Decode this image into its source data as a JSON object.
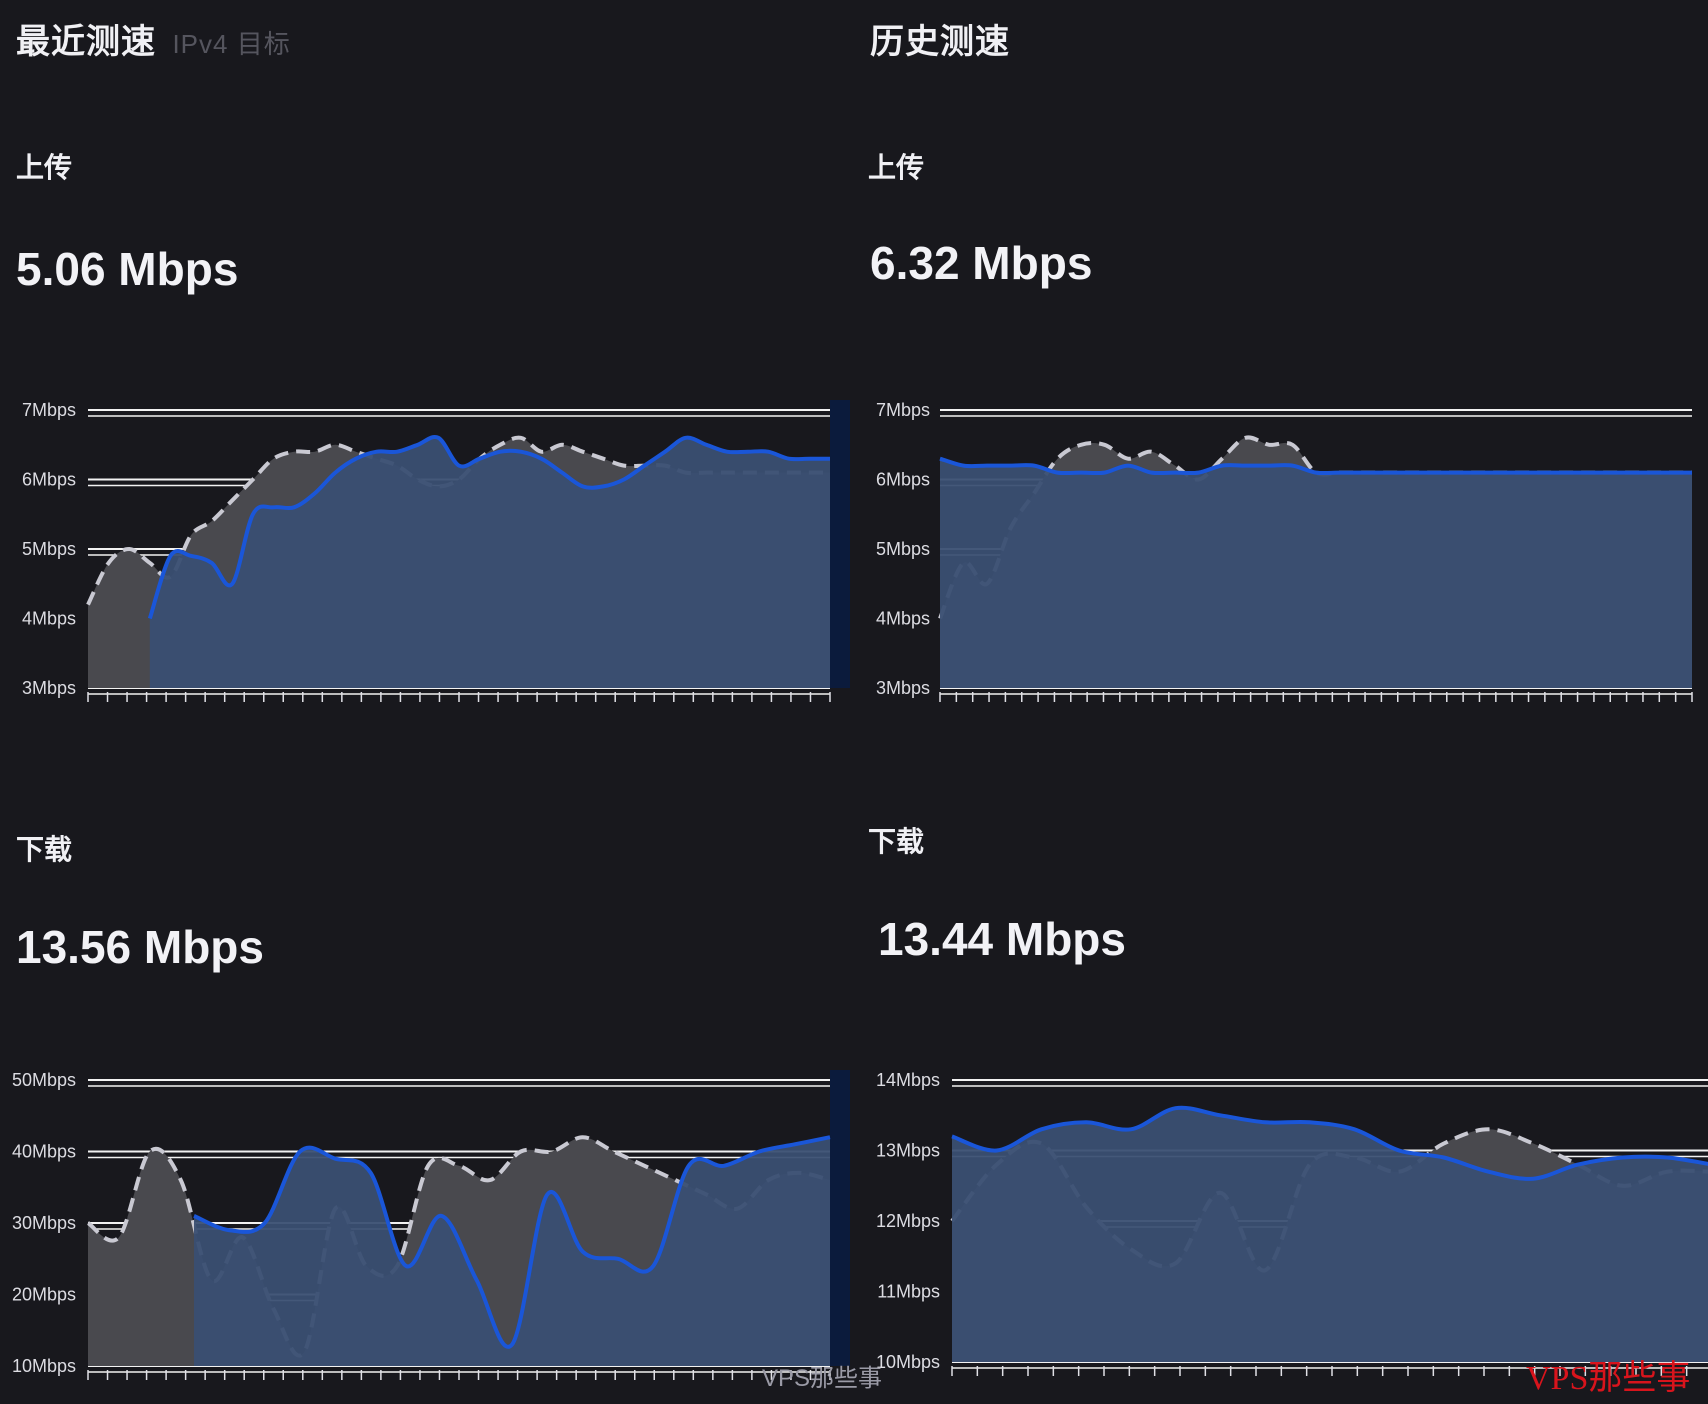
{
  "sections": [
    {
      "title": "最近测速",
      "title_extra": "IPv4 目标"
    },
    {
      "title": "历史测速",
      "title_extra": ""
    }
  ],
  "charts": [
    {
      "label": "上传",
      "value": "5.06 Mbps"
    },
    {
      "label": "上传",
      "value": "6.32 Mbps"
    },
    {
      "label": "下载",
      "value": "13.56 Mbps"
    },
    {
      "label": "下载",
      "value": "13.44 Mbps"
    }
  ],
  "watermark": "VPS那些事",
  "watermark2": "VPS那些事",
  "colors": {
    "background": "#18181d",
    "area_gray": "#49494e",
    "area_blue": "#3a4f72",
    "line_blue": "#1a56d8",
    "dark_navy": "#0b1b3c"
  },
  "chart_data": [
    {
      "type": "area",
      "ylim": [
        3,
        7
      ],
      "tick_labels": [
        "3Mbps",
        "4Mbps",
        "5Mbps",
        "6Mbps",
        "7Mbps"
      ],
      "tick_values": [
        3,
        4,
        5,
        6,
        7
      ],
      "series": [
        {
          "values": [
            4.2,
            4.8,
            5.0,
            4.8,
            4.6,
            5.2,
            5.4,
            5.7,
            6.0,
            6.3,
            6.4,
            6.4,
            6.5,
            6.4,
            6.3,
            6.2,
            6.0,
            5.9,
            6.0,
            6.3,
            6.5,
            6.6,
            6.4,
            6.5,
            6.4,
            6.3,
            6.2,
            6.2,
            6.2,
            6.1,
            6.1,
            6.1,
            6.1,
            6.1,
            6.1,
            6.1,
            6.1
          ]
        },
        {
          "values": [
            null,
            null,
            null,
            4.0,
            4.9,
            4.9,
            4.8,
            4.5,
            5.5,
            5.6,
            5.6,
            5.8,
            6.1,
            6.3,
            6.4,
            6.4,
            6.5,
            6.6,
            6.2,
            6.3,
            6.4,
            6.4,
            6.3,
            6.1,
            5.9,
            5.9,
            6.0,
            6.2,
            6.4,
            6.6,
            6.5,
            6.4,
            6.4,
            6.4,
            6.3,
            6.3,
            6.3
          ]
        }
      ]
    },
    {
      "type": "area",
      "ylim": [
        3,
        7
      ],
      "tick_labels": [
        "3Mbps",
        "4Mbps",
        "5Mbps",
        "6Mbps",
        "7Mbps"
      ],
      "tick_values": [
        3,
        4,
        5,
        6,
        7
      ],
      "series": [
        {
          "values": [
            4.0,
            4.8,
            4.5,
            5.3,
            5.8,
            6.3,
            6.5,
            6.5,
            6.3,
            6.4,
            6.2,
            6.0,
            6.3,
            6.6,
            6.5,
            6.5,
            6.1,
            6.1,
            6.1,
            6.1,
            6.1,
            6.1,
            6.1,
            6.1,
            6.1,
            6.1,
            6.1,
            6.1,
            6.1,
            6.1,
            6.1,
            6.1,
            6.1
          ]
        },
        {
          "values": [
            6.3,
            6.2,
            6.2,
            6.2,
            6.2,
            6.1,
            6.1,
            6.1,
            6.2,
            6.1,
            6.1,
            6.1,
            6.2,
            6.2,
            6.2,
            6.2,
            6.1,
            6.1,
            6.1,
            6.1,
            6.1,
            6.1,
            6.1,
            6.1,
            6.1,
            6.1,
            6.1,
            6.1,
            6.1,
            6.1,
            6.1,
            6.1,
            6.1
          ]
        }
      ]
    },
    {
      "type": "area",
      "ylim": [
        10,
        50
      ],
      "tick_labels": [
        "10Mbps",
        "20Mbps",
        "30Mbps",
        "40Mbps",
        "50Mbps"
      ],
      "tick_values": [
        10,
        20,
        30,
        40,
        50
      ],
      "series": [
        {
          "values": [
            30,
            28,
            40,
            36,
            22,
            28,
            18,
            12,
            32,
            24,
            24,
            38,
            38,
            36,
            40,
            40,
            42,
            40,
            38,
            36,
            34,
            32,
            36,
            37,
            36
          ]
        },
        {
          "values": [
            null,
            null,
            null,
            31,
            29,
            30,
            40,
            39,
            37,
            24,
            31,
            22,
            13,
            34,
            26,
            25,
            24,
            38,
            38,
            40,
            41,
            42
          ]
        }
      ]
    },
    {
      "type": "area",
      "ylim": [
        10,
        14
      ],
      "tick_labels": [
        "10Mbps",
        "11Mbps",
        "12Mbps",
        "13Mbps",
        "14Mbps"
      ],
      "tick_values": [
        10,
        11,
        12,
        13,
        14
      ],
      "series": [
        {
          "values": [
            12.0,
            12.8,
            13.1,
            12.2,
            11.6,
            11.4,
            12.4,
            11.3,
            12.8,
            12.9,
            12.7,
            13.1,
            13.3,
            13.1,
            12.8,
            12.5,
            12.7,
            12.7
          ]
        },
        {
          "values": [
            13.2,
            13.0,
            13.3,
            13.4,
            13.3,
            13.6,
            13.5,
            13.4,
            13.4,
            13.3,
            13.0,
            12.9,
            12.7,
            12.6,
            12.8,
            12.9,
            12.9,
            12.8
          ]
        }
      ]
    }
  ]
}
